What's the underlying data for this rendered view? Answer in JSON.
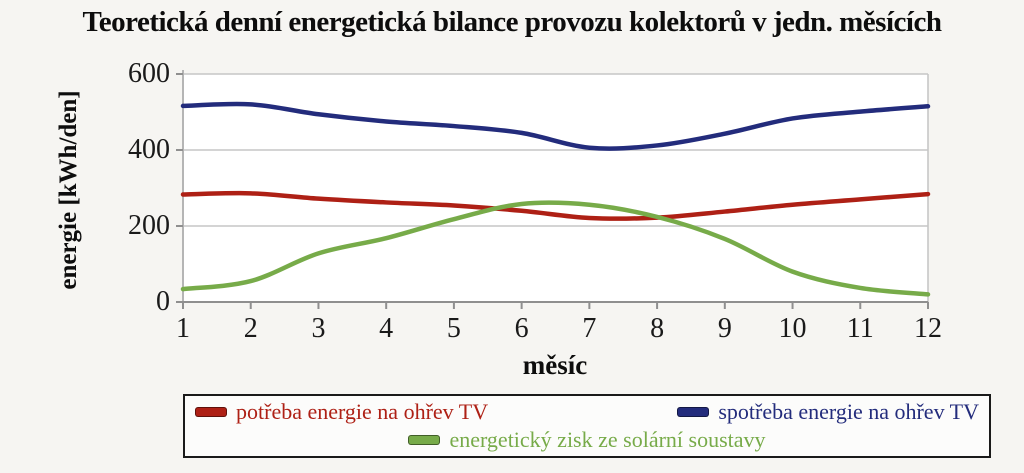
{
  "chart_data": {
    "type": "line",
    "title": "Teoretická denní energetická bilance provozu kolektorů v jedn. měsících",
    "xlabel": "měsíc",
    "ylabel": "energie [kWh/den]",
    "x": [
      1,
      2,
      3,
      4,
      5,
      6,
      7,
      8,
      9,
      10,
      11,
      12
    ],
    "x_ticks": [
      "1",
      "2",
      "3",
      "4",
      "5",
      "6",
      "7",
      "8",
      "9",
      "10",
      "11",
      "12"
    ],
    "y_ticks": [
      "0",
      "200",
      "400",
      "600"
    ],
    "y_tick_values": [
      0,
      200,
      400,
      600
    ],
    "xlim": [
      1,
      12
    ],
    "ylim": [
      0,
      600
    ],
    "grid": true,
    "legend_position": "bottom",
    "series": [
      {
        "name": "potřeba energie na ohřev TV",
        "color": "#ae2015",
        "values": [
          283,
          286,
          272,
          262,
          254,
          240,
          221,
          222,
          238,
          256,
          270,
          284
        ]
      },
      {
        "name": "spotřeba energie na ohřev TV",
        "color": "#232c7c",
        "values": [
          516,
          520,
          494,
          475,
          463,
          445,
          406,
          412,
          443,
          483,
          501,
          515
        ]
      },
      {
        "name": "energetický zisk ze solární soustavy",
        "color": "#77ab49",
        "values": [
          34,
          55,
          128,
          168,
          218,
          258,
          256,
          224,
          166,
          80,
          37,
          20
        ]
      }
    ]
  },
  "colors": {
    "page_bg": "#f6f5f2",
    "plot_bg": "#ffffff",
    "grid": "#c6c6c6",
    "axis": "#8f8f8f",
    "y_axis": "#b5b5b5",
    "legend_border": "#1a1a1a",
    "title_text": "#0d0d0d"
  }
}
